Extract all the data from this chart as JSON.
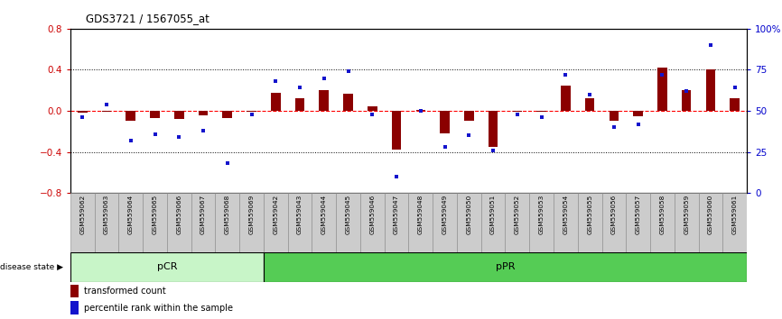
{
  "title": "GDS3721 / 1567055_at",
  "samples": [
    "GSM559062",
    "GSM559063",
    "GSM559064",
    "GSM559065",
    "GSM559066",
    "GSM559067",
    "GSM559068",
    "GSM559069",
    "GSM559042",
    "GSM559043",
    "GSM559044",
    "GSM559045",
    "GSM559046",
    "GSM559047",
    "GSM559048",
    "GSM559049",
    "GSM559050",
    "GSM559051",
    "GSM559052",
    "GSM559053",
    "GSM559054",
    "GSM559055",
    "GSM559056",
    "GSM559057",
    "GSM559058",
    "GSM559059",
    "GSM559060",
    "GSM559061"
  ],
  "transformed_count": [
    -0.02,
    -0.01,
    -0.1,
    -0.07,
    -0.08,
    -0.04,
    -0.07,
    -0.01,
    0.18,
    0.12,
    0.2,
    0.17,
    0.04,
    -0.38,
    0.01,
    -0.22,
    -0.1,
    -0.35,
    -0.01,
    -0.01,
    0.25,
    0.12,
    -0.1,
    -0.05,
    0.42,
    0.2,
    0.4,
    0.12
  ],
  "percentile_rank": [
    46,
    54,
    32,
    36,
    34,
    38,
    18,
    48,
    68,
    64,
    70,
    74,
    48,
    10,
    50,
    28,
    35,
    26,
    48,
    46,
    72,
    60,
    40,
    42,
    72,
    62,
    90,
    64
  ],
  "pcr_count": 8,
  "ppr_count": 20,
  "bar_color": "#8B0000",
  "dot_color": "#1414CC",
  "ylim": [
    -0.8,
    0.8
  ],
  "yticks_left": [
    -0.8,
    -0.4,
    0.0,
    0.4,
    0.8
  ],
  "yticks_right": [
    0,
    25,
    50,
    75,
    100
  ],
  "ylabel_left_color": "#CC0000",
  "ylabel_right_color": "#0000CC",
  "hline_zero_color": "#FF0000",
  "hline_dotted_color": "#000000",
  "background_color": "#ffffff",
  "pcr_color": "#c8f5c8",
  "ppr_color": "#55cc55",
  "label_bg_color": "#cccccc",
  "label_border_color": "#888888"
}
